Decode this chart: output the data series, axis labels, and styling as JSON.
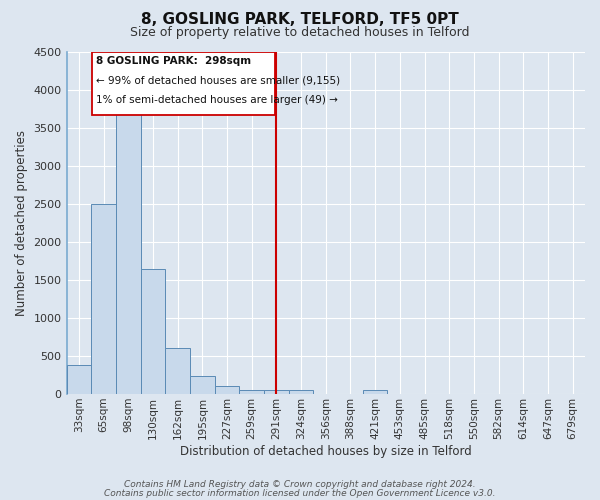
{
  "title": "8, GOSLING PARK, TELFORD, TF5 0PT",
  "subtitle": "Size of property relative to detached houses in Telford",
  "xlabel": "Distribution of detached houses by size in Telford",
  "ylabel": "Number of detached properties",
  "categories": [
    "33sqm",
    "65sqm",
    "98sqm",
    "130sqm",
    "162sqm",
    "195sqm",
    "227sqm",
    "259sqm",
    "291sqm",
    "324sqm",
    "356sqm",
    "388sqm",
    "421sqm",
    "453sqm",
    "485sqm",
    "518sqm",
    "550sqm",
    "582sqm",
    "614sqm",
    "647sqm",
    "679sqm"
  ],
  "values": [
    380,
    2500,
    3750,
    1640,
    600,
    240,
    100,
    55,
    50,
    50,
    0,
    0,
    50,
    0,
    0,
    0,
    0,
    0,
    0,
    0,
    0
  ],
  "bar_color": "#c8d9eb",
  "bar_edge_color": "#5a8ab5",
  "ylim": [
    0,
    4500
  ],
  "vline_x_idx": 8,
  "vline_color": "#cc0000",
  "annotation_title": "8 GOSLING PARK:  298sqm",
  "annotation_line1": "← 99% of detached houses are smaller (9,155)",
  "annotation_line2": "1% of semi-detached houses are larger (49) →",
  "annotation_box_color": "#cc0000",
  "annotation_fill": "#ffffff",
  "footer_line1": "Contains HM Land Registry data © Crown copyright and database right 2024.",
  "footer_line2": "Contains public sector information licensed under the Open Government Licence v3.0.",
  "background_color": "#dde6f0",
  "title_fontsize": 11,
  "subtitle_fontsize": 9,
  "axis_label_fontsize": 8.5,
  "tick_fontsize": 7.5,
  "footer_fontsize": 6.5
}
